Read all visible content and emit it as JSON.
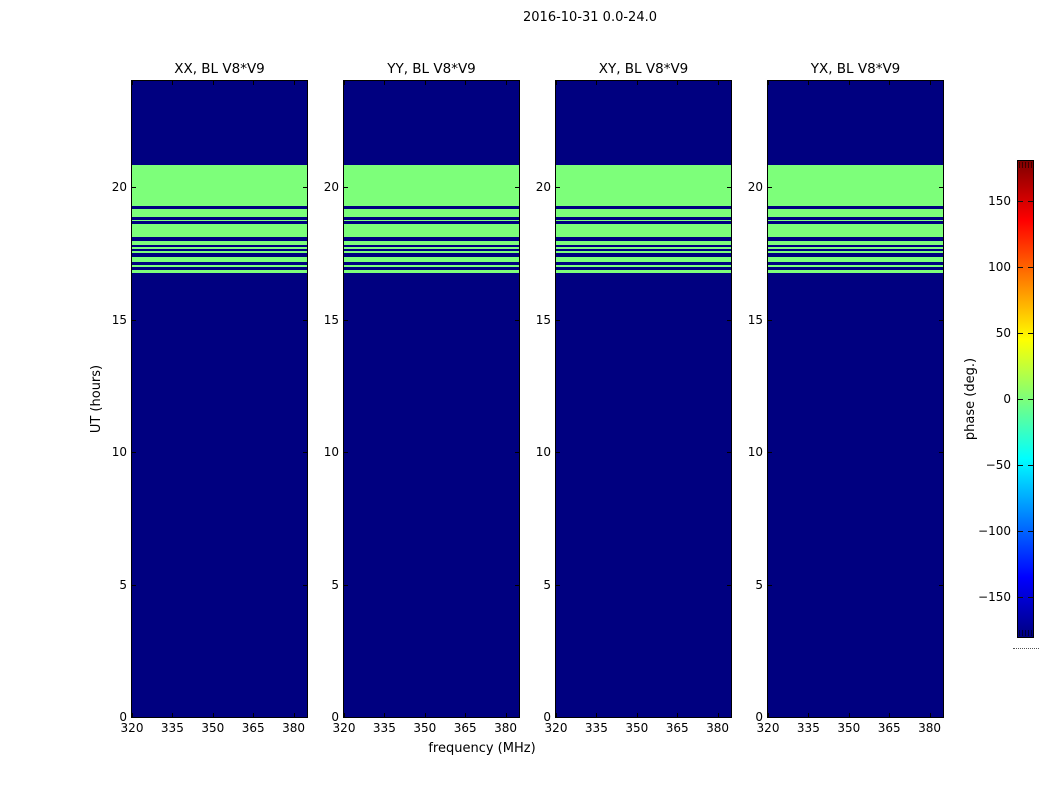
{
  "figure": {
    "suptitle": "2016-10-31 0.0-24.0",
    "xlabel": "frequency (MHz)",
    "ylabel": "UT (hours)",
    "colorbar_label": "phase (deg.)"
  },
  "chart_data": {
    "type": "heatmap",
    "title": "2016-10-31 0.0-24.0",
    "subplots": [
      {
        "key": "xx",
        "title": "XX, BL V8*V9"
      },
      {
        "key": "yy",
        "title": "YY, BL V8*V9"
      },
      {
        "key": "xy",
        "title": "XY, BL V8*V9"
      },
      {
        "key": "yx",
        "title": "YX, BL V8*V9"
      }
    ],
    "x_axis": {
      "label": "frequency (MHz)",
      "ticks": [
        320,
        335,
        350,
        365,
        380
      ],
      "range": [
        320,
        385
      ]
    },
    "y_axis": {
      "label": "UT (hours)",
      "ticks": [
        0,
        5,
        10,
        15,
        20
      ],
      "range": [
        0,
        24
      ]
    },
    "colorbar": {
      "label": "phase (deg.)",
      "ticks": [
        150,
        100,
        50,
        0,
        -50,
        -100,
        -150
      ],
      "range": [
        -180,
        180
      ],
      "colormap": "jet"
    },
    "data_description": {
      "background_phase_deg": -180,
      "band_phase_deg": 0,
      "band_hours": [
        16.75,
        20.82
      ],
      "band_gap_hours": [
        [
          16.87,
          16.98
        ],
        [
          17.04,
          17.18
        ],
        [
          17.35,
          17.5
        ],
        [
          17.57,
          17.66
        ],
        [
          17.72,
          17.82
        ],
        [
          17.96,
          18.13
        ],
        [
          18.62,
          18.73
        ],
        [
          18.77,
          18.88
        ],
        [
          19.18,
          19.3
        ]
      ]
    },
    "colors": {
      "background": "#000080",
      "band": "#7dff7a",
      "jet_gradient_top_to_bottom": [
        {
          "color": "#800000",
          "pos": 0
        },
        {
          "color": "#ff0000",
          "pos": 12.5
        },
        {
          "color": "#ffff00",
          "pos": 37.5
        },
        {
          "color": "#7dff7a",
          "pos": 50
        },
        {
          "color": "#00ffff",
          "pos": 62.5
        },
        {
          "color": "#0000ff",
          "pos": 87.5
        },
        {
          "color": "#000080",
          "pos": 100
        }
      ]
    }
  }
}
